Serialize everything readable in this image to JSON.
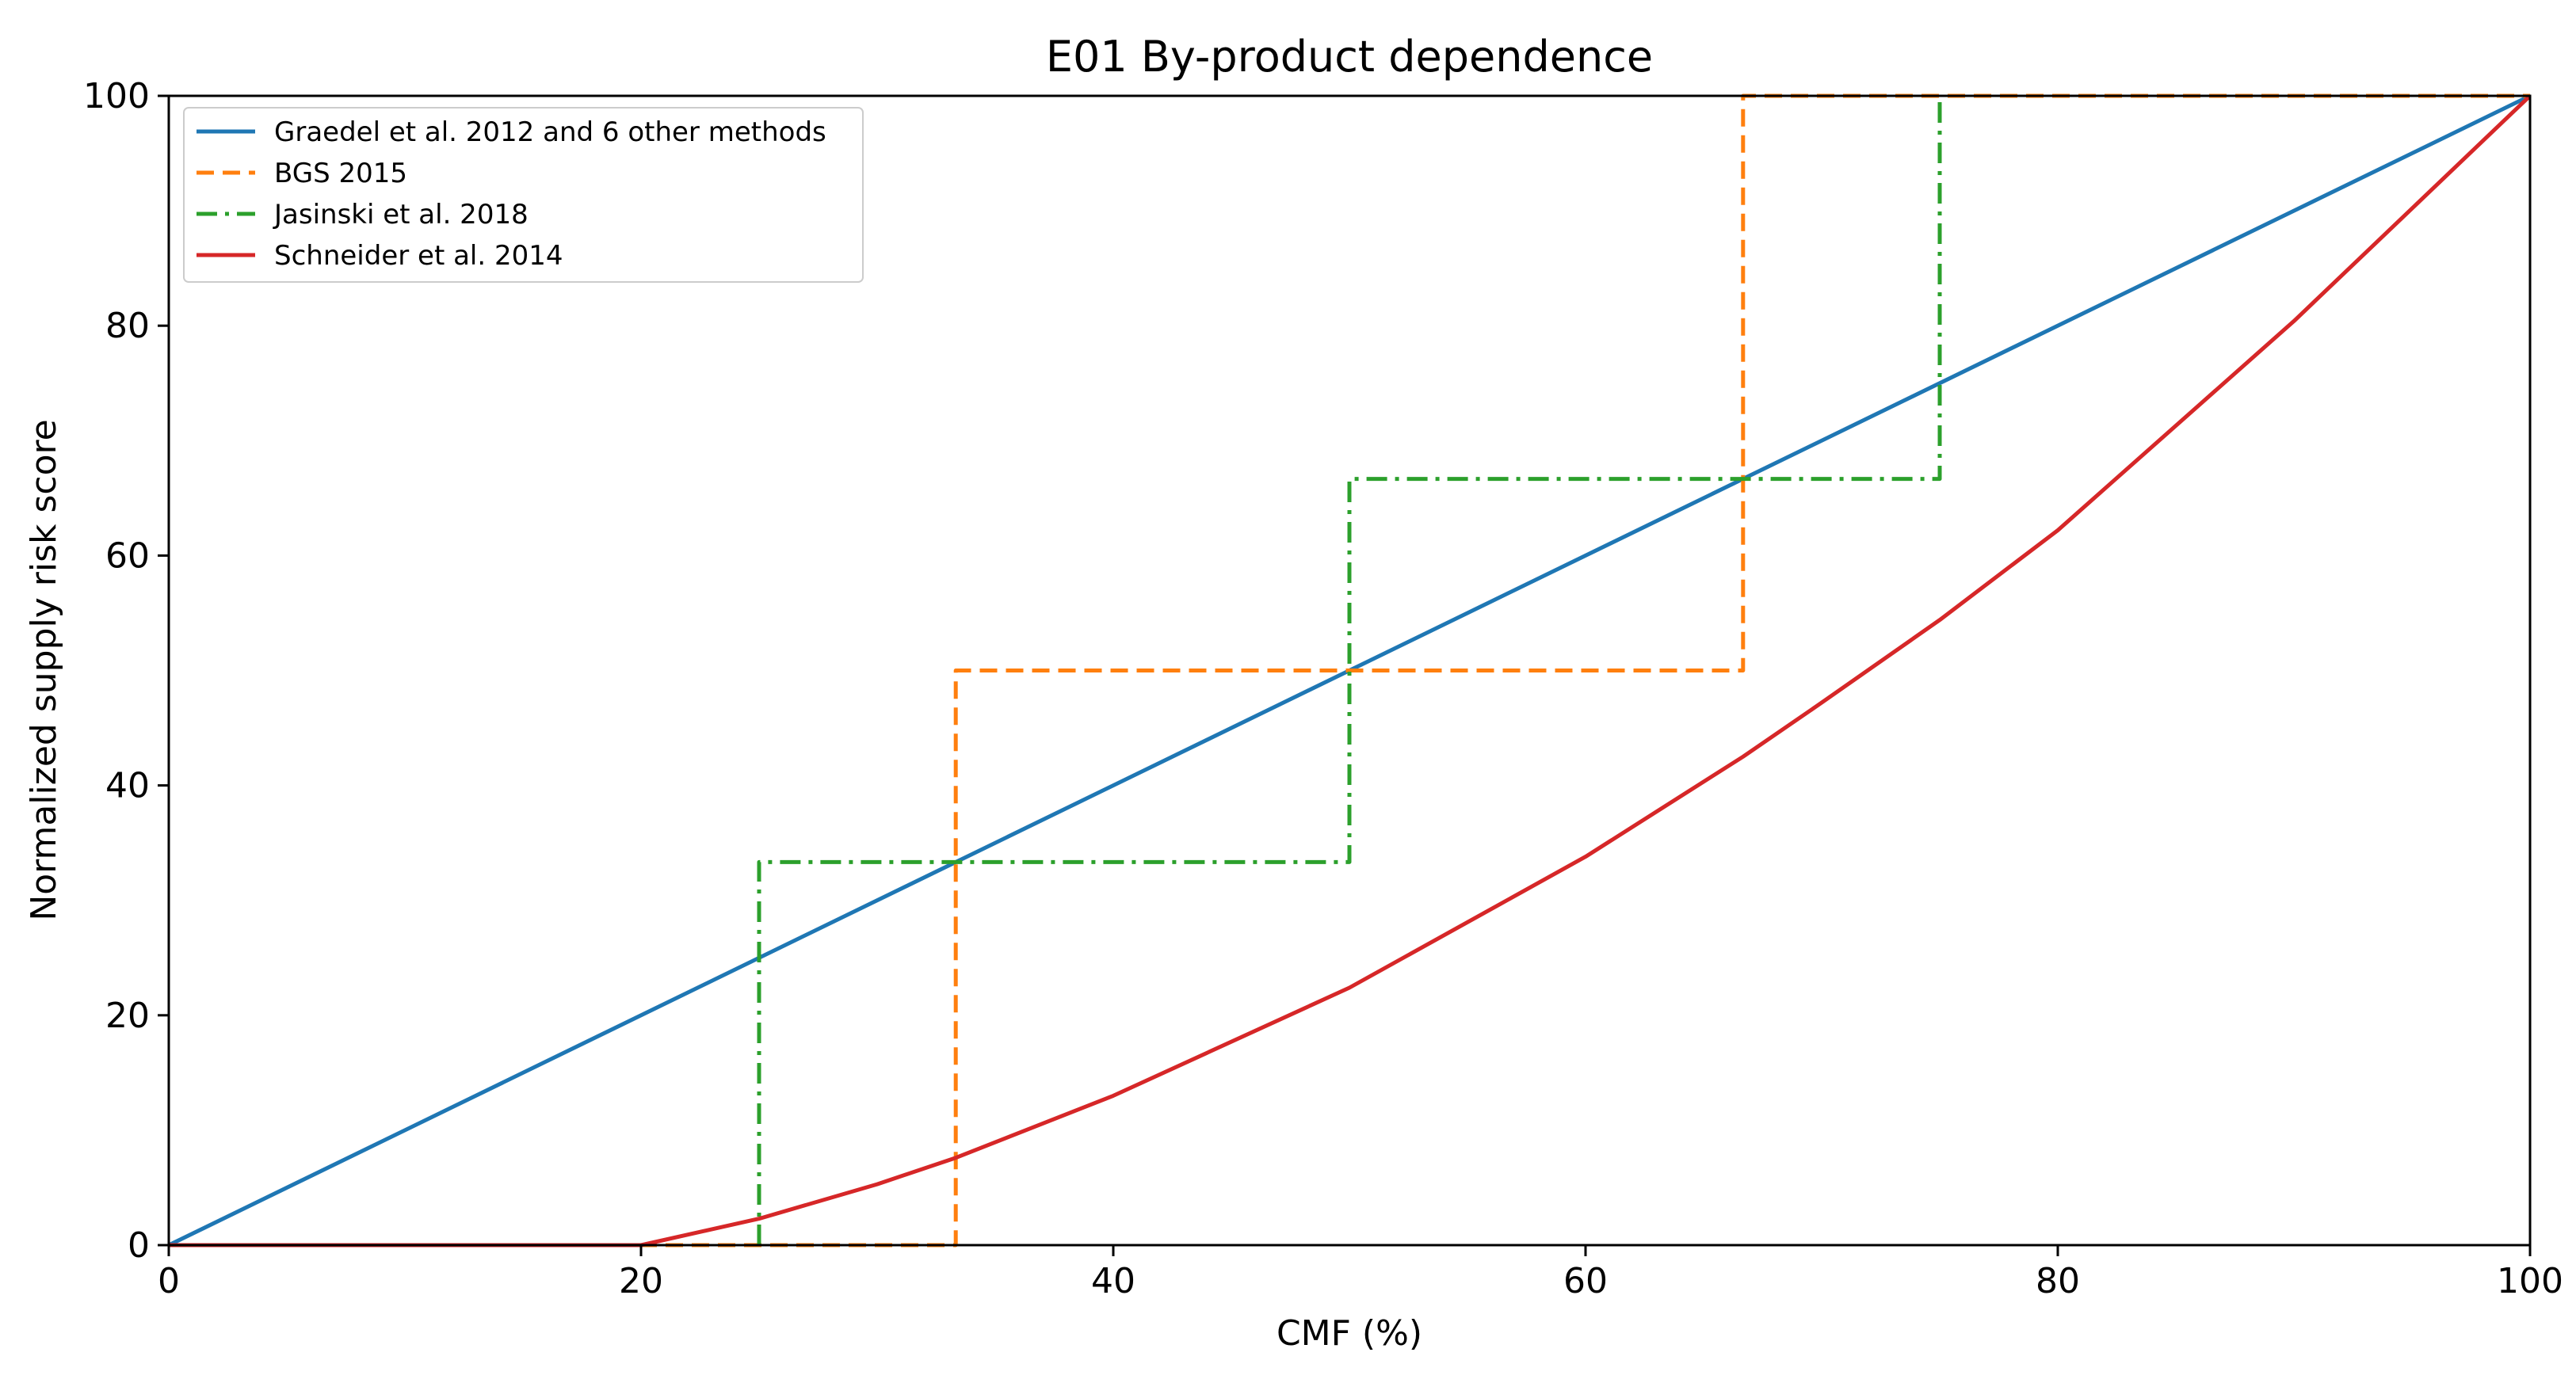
{
  "chart_data": {
    "type": "line",
    "title": "E01 By-product dependence",
    "xlabel": "CMF (%)",
    "ylabel": "Normalized supply risk score",
    "xlim": [
      0,
      100
    ],
    "ylim": [
      0,
      100
    ],
    "xticks": [
      0,
      20,
      40,
      60,
      80,
      100
    ],
    "yticks": [
      0,
      20,
      40,
      60,
      80,
      100
    ],
    "grid": false,
    "legend_position": "top-left",
    "series": [
      {
        "name": "Graedel et al. 2012 and 6 other methods",
        "color": "#1f77b4",
        "style": "solid",
        "x": [
          0,
          100
        ],
        "y": [
          0,
          100
        ]
      },
      {
        "name": "BGS 2015",
        "color": "#ff7f0e",
        "style": "dashed",
        "x": [
          0,
          33.33,
          33.33,
          66.67,
          66.67,
          100
        ],
        "y": [
          0,
          0,
          50,
          50,
          100,
          100
        ]
      },
      {
        "name": "Jasinski et al. 2018",
        "color": "#2ca02c",
        "style": "dashdot",
        "x": [
          25,
          25,
          50,
          50,
          75,
          75
        ],
        "y": [
          0,
          33.33,
          33.33,
          66.67,
          66.67,
          100
        ]
      },
      {
        "name": "Schneider et al. 2014",
        "color": "#d62728",
        "style": "solid",
        "x": [
          0,
          20,
          25,
          30,
          33.33,
          40,
          50,
          60,
          66.67,
          70,
          75,
          80,
          90,
          100
        ],
        "y": [
          0,
          0,
          2.3,
          5.3,
          7.6,
          13.0,
          22.4,
          33.8,
          42.5,
          47.2,
          54.4,
          62.2,
          80.4,
          100
        ]
      }
    ]
  }
}
